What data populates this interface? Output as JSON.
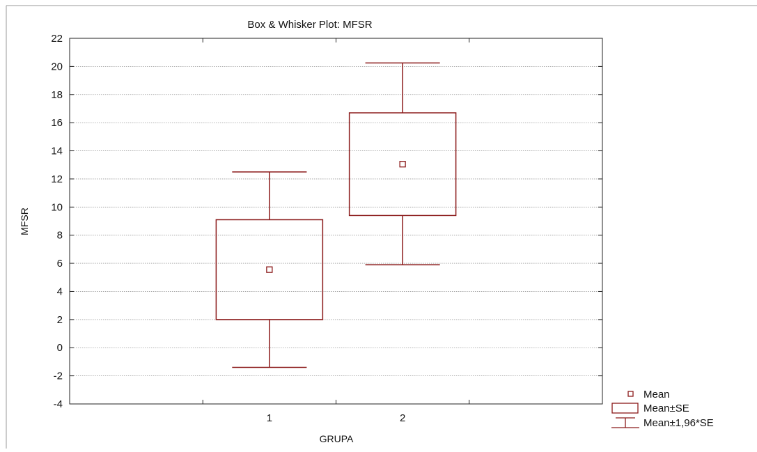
{
  "chart_data": {
    "type": "box",
    "title": "Box & Whisker Plot: MFSR",
    "xlabel": "GRUPA",
    "ylabel": "MFSR",
    "ylim": [
      -4,
      22
    ],
    "yticks": [
      -4,
      -2,
      0,
      2,
      4,
      6,
      8,
      10,
      12,
      14,
      16,
      18,
      20,
      22
    ],
    "categories": [
      "1",
      "2"
    ],
    "grid": true,
    "color": "#8b1a1a",
    "legend_placement": "bottom-right",
    "legend": {
      "mean": "Mean",
      "box": "Mean±SE",
      "whisker": "Mean±1,96*SE"
    },
    "groups": [
      {
        "category": "1",
        "mean": 5.55,
        "se_low": 2.0,
        "se_high": 9.1,
        "ci_low": -1.4,
        "ci_high": 12.5
      },
      {
        "category": "2",
        "mean": 13.05,
        "se_low": 9.4,
        "se_high": 16.7,
        "ci_low": 5.9,
        "ci_high": 20.25
      }
    ]
  }
}
